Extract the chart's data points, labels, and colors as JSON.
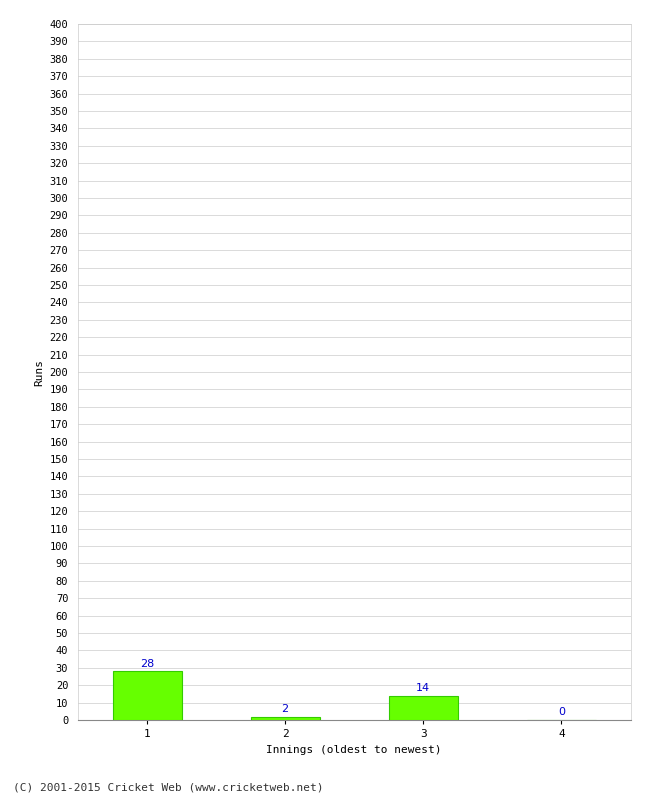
{
  "categories": [
    1,
    2,
    3,
    4
  ],
  "values": [
    28,
    2,
    14,
    0
  ],
  "bar_color": "#66ff00",
  "bar_edge_color": "#33cc00",
  "label_color": "#0000cc",
  "xlabel": "Innings (oldest to newest)",
  "ylabel": "Runs",
  "ylim": [
    0,
    400
  ],
  "ytick_step": 10,
  "background_color": "#ffffff",
  "grid_color": "#cccccc",
  "footer_text": "(C) 2001-2015 Cricket Web (www.cricketweb.net)",
  "bar_width": 0.5
}
